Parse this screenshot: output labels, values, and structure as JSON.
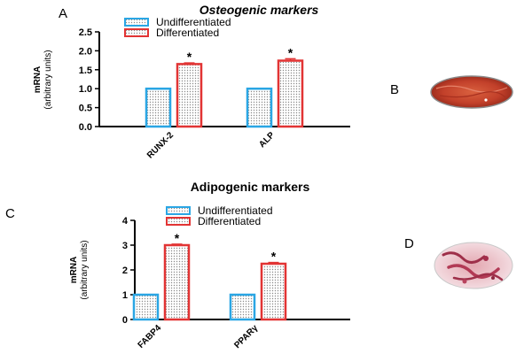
{
  "panel_labels": {
    "a": "A",
    "b": "B",
    "c": "C",
    "d": "D"
  },
  "colors": {
    "undifferentiated": "#2aa6e4",
    "differentiated": "#e23434",
    "axis": "#000000",
    "stain_b": "#c9432a",
    "stain_d": "#b0364f"
  },
  "chart_data": [
    {
      "type": "bar",
      "title": "Osteogenic markers",
      "ylabel_line1": "mRNA",
      "ylabel_line2": "(arbitrary units)",
      "categories": [
        "RUNX-2",
        "ALP"
      ],
      "yticks": [
        "0.0",
        "0.5",
        "1.0",
        "1.5",
        "2.0",
        "2.5"
      ],
      "ylim": [
        0,
        2.5
      ],
      "legend_position": "top",
      "series": [
        {
          "name": "Undifferentiated",
          "values": [
            1.0,
            1.0
          ],
          "errors": [
            0.0,
            0.0
          ],
          "marks": [
            "",
            ""
          ]
        },
        {
          "name": "Differentiated",
          "values": [
            1.65,
            1.74
          ],
          "errors": [
            0.03,
            0.05
          ],
          "marks": [
            "*",
            "*"
          ]
        }
      ]
    },
    {
      "type": "bar",
      "title": "Adipogenic markers",
      "ylabel_line1": "mRNA",
      "ylabel_line2": "(arbitrary units)",
      "categories": [
        "FABP4",
        "PPARγ"
      ],
      "yticks": [
        "0",
        "1",
        "2",
        "3",
        "4"
      ],
      "ylim": [
        0,
        4
      ],
      "legend_position": "top",
      "series": [
        {
          "name": "Undifferentiated",
          "values": [
            1.0,
            1.0
          ],
          "errors": [
            0.0,
            0.0
          ],
          "marks": [
            "",
            ""
          ]
        },
        {
          "name": "Differentiated",
          "values": [
            3.0,
            2.25
          ],
          "errors": [
            0.04,
            0.05
          ],
          "marks": [
            "*",
            "*"
          ]
        }
      ]
    }
  ]
}
